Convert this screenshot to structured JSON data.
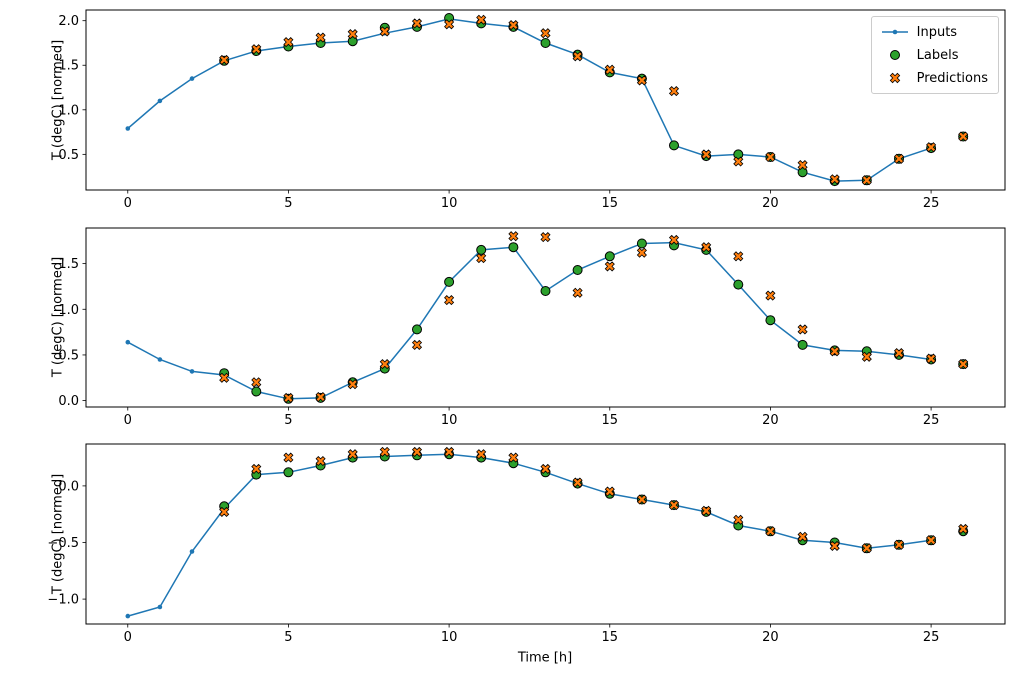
{
  "colors": {
    "inputs": "#1f77b4",
    "labels": "#2ca02c",
    "predictions": "#ff7f0e",
    "marker_edge": "#000000",
    "spine": "#000000",
    "legend_border": "#cccccc"
  },
  "chart_data": [
    {
      "type": "line",
      "title": "",
      "xlabel": "",
      "ylabel": "T (degC) [normed]",
      "xlim": [
        -1.3,
        27.3
      ],
      "ylim": [
        0.1,
        2.12
      ],
      "grid": false,
      "xticks": [
        0,
        5,
        10,
        15,
        20,
        25
      ],
      "xtick_labels": [
        "0",
        "5",
        "10",
        "15",
        "20",
        "25"
      ],
      "yticks": [
        0.5,
        1.0,
        1.5,
        2.0
      ],
      "ytick_labels": [
        "0.5",
        "1.0",
        "1.5",
        "2.0"
      ],
      "legend": {
        "position": "upper right",
        "entries": [
          "Inputs",
          "Labels",
          "Predictions"
        ]
      },
      "series": [
        {
          "name": "Inputs",
          "type": "line",
          "marker": "dot",
          "color": "#1f77b4",
          "x": [
            0,
            1,
            2,
            3,
            4,
            5,
            6,
            7,
            8,
            9,
            10,
            11,
            12,
            13,
            14,
            15,
            16,
            17,
            18,
            19,
            20,
            21,
            22,
            23,
            24,
            25
          ],
          "y": [
            0.79,
            1.1,
            1.35,
            1.55,
            1.66,
            1.71,
            1.75,
            1.77,
            1.86,
            1.93,
            2.02,
            1.97,
            1.93,
            1.75,
            1.62,
            1.42,
            1.35,
            0.6,
            0.48,
            0.5,
            0.47,
            0.3,
            0.2,
            0.21,
            0.45,
            0.57
          ]
        },
        {
          "name": "Labels",
          "type": "scatter",
          "marker": "circle",
          "color": "#2ca02c",
          "x": [
            3,
            4,
            5,
            6,
            7,
            8,
            9,
            10,
            11,
            12,
            13,
            14,
            15,
            16,
            17,
            18,
            19,
            20,
            21,
            22,
            23,
            24,
            25,
            26
          ],
          "y": [
            1.55,
            1.66,
            1.71,
            1.75,
            1.77,
            1.92,
            1.93,
            2.03,
            1.97,
            1.93,
            1.75,
            1.62,
            1.42,
            1.35,
            0.6,
            0.48,
            0.5,
            0.47,
            0.3,
            0.2,
            0.21,
            0.45,
            0.57,
            0.7
          ]
        },
        {
          "name": "Predictions",
          "type": "scatter",
          "marker": "X",
          "color": "#ff7f0e",
          "x": [
            3,
            4,
            5,
            6,
            7,
            8,
            9,
            10,
            11,
            12,
            13,
            14,
            15,
            16,
            17,
            18,
            19,
            20,
            21,
            22,
            23,
            24,
            25,
            26
          ],
          "y": [
            1.56,
            1.68,
            1.76,
            1.81,
            1.85,
            1.88,
            1.97,
            1.96,
            2.01,
            1.95,
            1.86,
            1.6,
            1.45,
            1.33,
            1.21,
            0.5,
            0.42,
            0.47,
            0.38,
            0.22,
            0.21,
            0.45,
            0.58,
            0.7
          ]
        }
      ]
    },
    {
      "type": "line",
      "title": "",
      "xlabel": "",
      "ylabel": "T (degC) [normed]",
      "xlim": [
        -1.3,
        27.3
      ],
      "ylim": [
        -0.07,
        1.89
      ],
      "grid": false,
      "xticks": [
        0,
        5,
        10,
        15,
        20,
        25
      ],
      "xtick_labels": [
        "0",
        "5",
        "10",
        "15",
        "20",
        "25"
      ],
      "yticks": [
        0.0,
        0.5,
        1.0,
        1.5
      ],
      "ytick_labels": [
        "0.0",
        "0.5",
        "1.0",
        "1.5"
      ],
      "series": [
        {
          "name": "Inputs",
          "type": "line",
          "marker": "dot",
          "color": "#1f77b4",
          "x": [
            0,
            1,
            2,
            3,
            4,
            5,
            6,
            7,
            8,
            9,
            10,
            11,
            12,
            13,
            14,
            15,
            16,
            17,
            18,
            19,
            20,
            21,
            22,
            23,
            24,
            25
          ],
          "y": [
            0.64,
            0.45,
            0.32,
            0.28,
            0.1,
            0.02,
            0.03,
            0.2,
            0.35,
            0.78,
            1.3,
            1.65,
            1.68,
            1.2,
            1.43,
            1.58,
            1.72,
            1.73,
            1.65,
            1.27,
            0.88,
            0.61,
            0.55,
            0.54,
            0.5,
            0.45
          ]
        },
        {
          "name": "Labels",
          "type": "scatter",
          "marker": "circle",
          "color": "#2ca02c",
          "x": [
            3,
            4,
            5,
            6,
            7,
            8,
            9,
            10,
            11,
            12,
            13,
            14,
            15,
            16,
            17,
            18,
            19,
            20,
            21,
            22,
            23,
            24,
            25,
            26
          ],
          "y": [
            0.3,
            0.1,
            0.02,
            0.03,
            0.2,
            0.35,
            0.78,
            1.3,
            1.65,
            1.68,
            1.2,
            1.43,
            1.58,
            1.72,
            1.7,
            1.65,
            1.27,
            0.88,
            0.61,
            0.55,
            0.54,
            0.5,
            0.45,
            0.4
          ]
        },
        {
          "name": "Predictions",
          "type": "scatter",
          "marker": "X",
          "color": "#ff7f0e",
          "x": [
            3,
            4,
            5,
            6,
            7,
            8,
            9,
            10,
            11,
            12,
            13,
            14,
            15,
            16,
            17,
            18,
            19,
            20,
            21,
            22,
            23,
            24,
            25,
            26
          ],
          "y": [
            0.25,
            0.2,
            0.03,
            0.04,
            0.18,
            0.4,
            0.61,
            1.1,
            1.56,
            1.8,
            1.79,
            1.18,
            1.47,
            1.62,
            1.76,
            1.68,
            1.58,
            1.15,
            0.78,
            0.54,
            0.48,
            0.52,
            0.46,
            0.4
          ]
        }
      ]
    },
    {
      "type": "line",
      "title": "",
      "xlabel": "Time [h]",
      "ylabel": "T (degC) [normed]",
      "xlim": [
        -1.3,
        27.3
      ],
      "ylim": [
        -1.22,
        0.37
      ],
      "grid": false,
      "xticks": [
        0,
        5,
        10,
        15,
        20,
        25
      ],
      "xtick_labels": [
        "0",
        "5",
        "10",
        "15",
        "20",
        "25"
      ],
      "yticks": [
        -1.0,
        -0.5,
        0.0
      ],
      "ytick_labels": [
        "−1.0",
        "−0.5",
        "0.0"
      ],
      "series": [
        {
          "name": "Inputs",
          "type": "line",
          "marker": "dot",
          "color": "#1f77b4",
          "x": [
            0,
            1,
            2,
            3,
            4,
            5,
            6,
            7,
            8,
            9,
            10,
            11,
            12,
            13,
            14,
            15,
            16,
            17,
            18,
            19,
            20,
            21,
            22,
            23,
            24,
            25
          ],
          "y": [
            -1.15,
            -1.07,
            -0.58,
            -0.2,
            0.1,
            0.12,
            0.18,
            0.25,
            0.26,
            0.27,
            0.28,
            0.25,
            0.2,
            0.12,
            0.02,
            -0.07,
            -0.12,
            -0.17,
            -0.23,
            -0.35,
            -0.4,
            -0.48,
            -0.5,
            -0.55,
            -0.52,
            -0.48
          ]
        },
        {
          "name": "Labels",
          "type": "scatter",
          "marker": "circle",
          "color": "#2ca02c",
          "x": [
            3,
            4,
            5,
            6,
            7,
            8,
            9,
            10,
            11,
            12,
            13,
            14,
            15,
            16,
            17,
            18,
            19,
            20,
            21,
            22,
            23,
            24,
            25,
            26
          ],
          "y": [
            -0.18,
            0.1,
            0.12,
            0.18,
            0.25,
            0.26,
            0.27,
            0.28,
            0.25,
            0.2,
            0.12,
            0.02,
            -0.07,
            -0.12,
            -0.17,
            -0.23,
            -0.35,
            -0.4,
            -0.48,
            -0.5,
            -0.55,
            -0.52,
            -0.48,
            -0.4
          ]
        },
        {
          "name": "Predictions",
          "type": "scatter",
          "marker": "X",
          "color": "#ff7f0e",
          "x": [
            3,
            4,
            5,
            6,
            7,
            8,
            9,
            10,
            11,
            12,
            13,
            14,
            15,
            16,
            17,
            18,
            19,
            20,
            21,
            22,
            23,
            24,
            25,
            26
          ],
          "y": [
            -0.23,
            0.15,
            0.25,
            0.22,
            0.28,
            0.3,
            0.3,
            0.3,
            0.28,
            0.25,
            0.15,
            0.03,
            -0.05,
            -0.12,
            -0.17,
            -0.22,
            -0.3,
            -0.4,
            -0.45,
            -0.53,
            -0.55,
            -0.52,
            -0.48,
            -0.38
          ]
        }
      ]
    }
  ]
}
